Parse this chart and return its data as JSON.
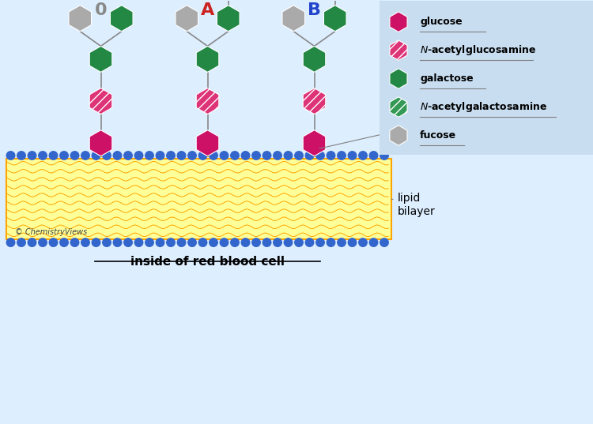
{
  "bg_color": "#ddeeff",
  "lipid_bg_color": "#ffff99",
  "lipid_wave_color": "#ffa500",
  "blue_circle_color": "#3366cc",
  "yellow_line_color": "#ccaa00",
  "glucose_color": "#cc1166",
  "nacetylglucosamine_color": "#dd3377",
  "galactose_color": "#228844",
  "nacetylgalactosamine_color": "#339955",
  "fucose_color": "#aaaaaa",
  "legend_bg": "#c8ddf0",
  "type_O_label": "0",
  "type_A_label": "A",
  "type_B_label": "B",
  "type_O_color": "#888888",
  "type_A_color": "#cc2222",
  "type_B_color": "#2244cc",
  "annotation_fontsize": 10,
  "copyright": "© ChemistryViews"
}
